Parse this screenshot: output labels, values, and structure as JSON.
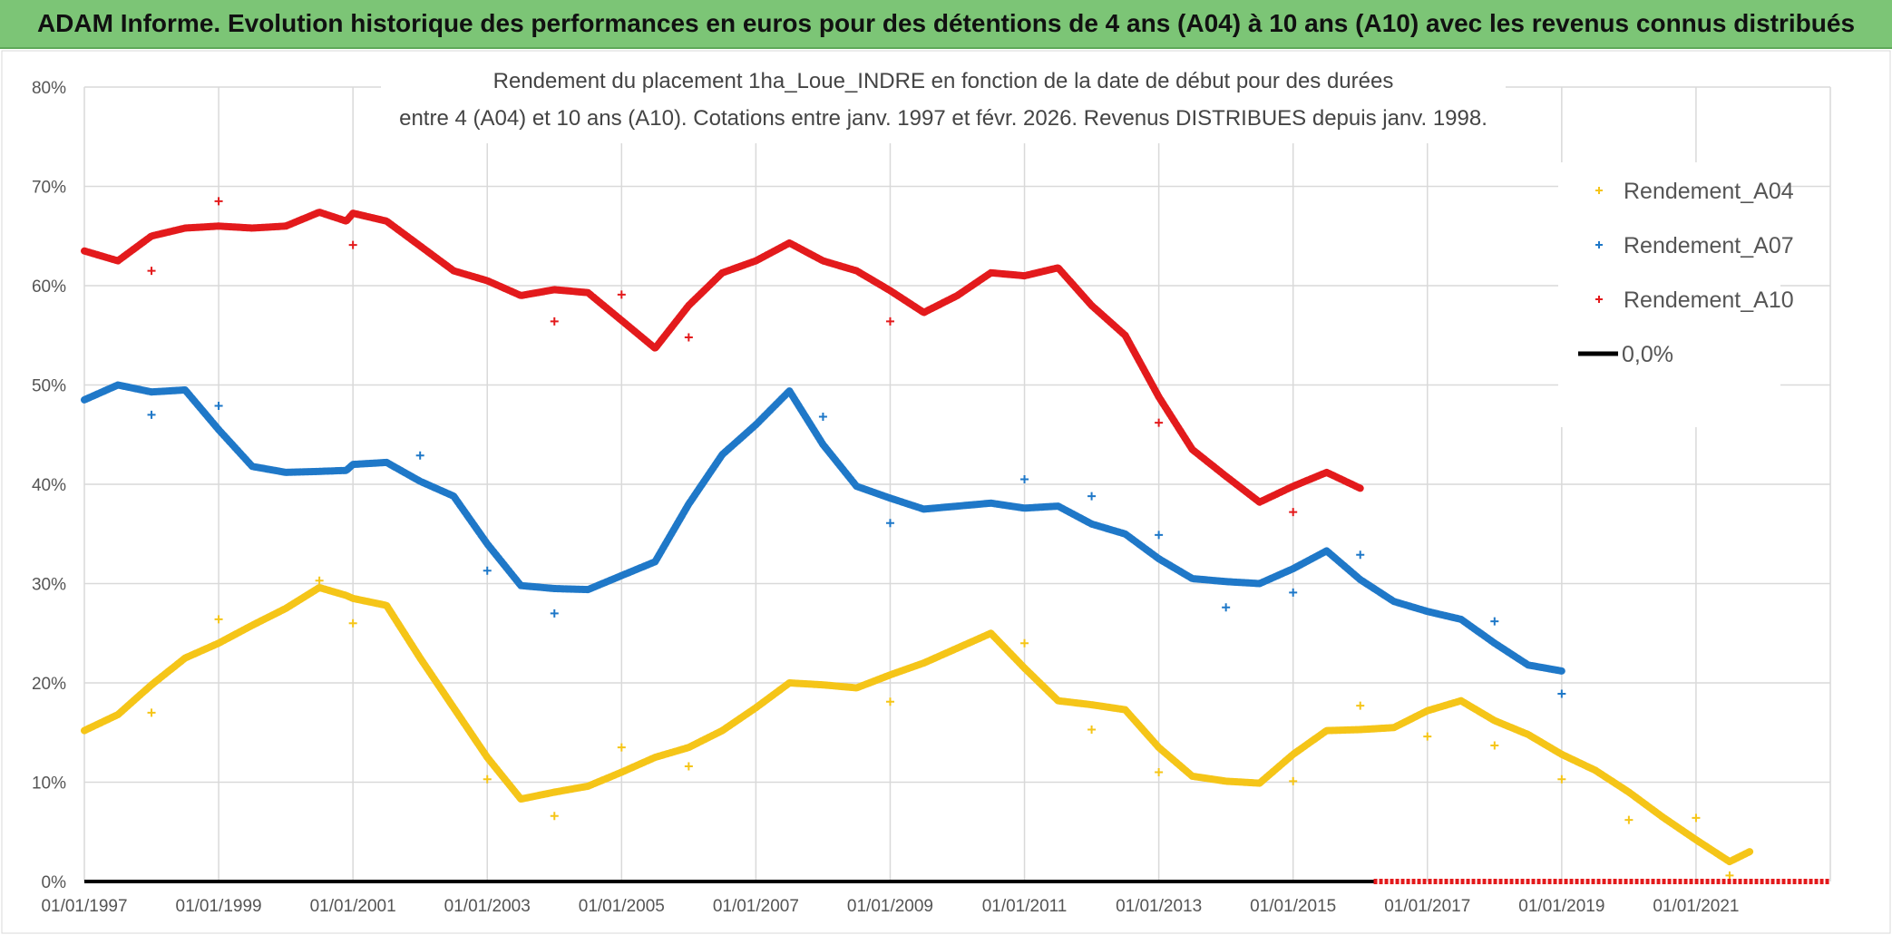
{
  "header": {
    "banner": "ADAM Informe. Evolution historique des performances en euros pour des détentions de 4 ans (A04) à 10 ans (A10) avec les revenus connus distribués"
  },
  "chart_data": {
    "type": "line",
    "title_line1": "Rendement du placement 1ha_Loue_INDRE en fonction de la date de début pour des durées",
    "title_line2": "entre 4 (A04) et 10 ans (A10). Cotations entre janv. 1997 et févr. 2026. Revenus DISTRIBUES depuis janv. 1998.",
    "xlabel": "",
    "ylabel": "",
    "xlim": [
      1997.0,
      2023.0
    ],
    "ylim": [
      0,
      80
    ],
    "grid": true,
    "legend_position": "top-right",
    "x_ticks": [
      1997,
      1999,
      2001,
      2003,
      2005,
      2007,
      2009,
      2011,
      2013,
      2015,
      2017,
      2019,
      2021
    ],
    "x_tick_labels": [
      "01/01/1997",
      "01/01/1999",
      "01/01/2001",
      "01/01/2003",
      "01/01/2005",
      "01/01/2007",
      "01/01/2009",
      "01/01/2011",
      "01/01/2013",
      "01/01/2015",
      "01/01/2017",
      "01/01/2019",
      "01/01/2021"
    ],
    "y_ticks": [
      0,
      10,
      20,
      30,
      40,
      50,
      60,
      70,
      80
    ],
    "y_tick_labels": [
      "0%",
      "10%",
      "20%",
      "30%",
      "40%",
      "50%",
      "60%",
      "70%",
      "80%"
    ],
    "series": [
      {
        "name": "Rendement_A04",
        "color": "#f5c518",
        "x": [
          1997.0,
          1997.5,
          1998.0,
          1998.5,
          1999.0,
          1999.5,
          2000.0,
          2000.5,
          2000.9,
          2001.0,
          2001.5,
          2002.0,
          2002.5,
          2003.0,
          2003.5,
          2004.0,
          2004.5,
          2005.0,
          2005.5,
          2006.0,
          2006.5,
          2007.0,
          2007.5,
          2008.0,
          2008.5,
          2009.0,
          2009.5,
          2010.0,
          2010.5,
          2011.0,
          2011.5,
          2012.0,
          2012.5,
          2013.0,
          2013.5,
          2014.0,
          2014.5,
          2015.0,
          2015.5,
          2016.0,
          2016.5,
          2017.0,
          2017.5,
          2018.0,
          2018.5,
          2019.0,
          2019.5,
          2020.0,
          2020.5,
          2021.0,
          2021.5,
          2021.8
        ],
        "y": [
          15.2,
          16.8,
          19.8,
          22.5,
          24.0,
          25.8,
          27.5,
          29.6,
          28.8,
          28.5,
          27.8,
          22.5,
          17.5,
          12.5,
          8.3,
          9.0,
          9.6,
          11.0,
          12.5,
          13.5,
          15.2,
          17.5,
          20.0,
          19.8,
          19.5,
          20.8,
          22.0,
          23.5,
          25.0,
          21.5,
          18.2,
          17.8,
          17.3,
          13.5,
          10.6,
          10.1,
          9.9,
          12.8,
          15.2,
          15.3,
          15.5,
          17.2,
          18.2,
          16.2,
          14.8,
          12.8,
          11.2,
          9.0,
          6.5,
          4.2,
          2.0,
          3.0
        ],
        "outliers_x": [
          1998.0,
          1999.0,
          2000.5,
          2001.0,
          2003.0,
          2004.0,
          2005.0,
          2006.0,
          2009.0,
          2011.0,
          2012.0,
          2013.0,
          2015.0,
          2016.0,
          2017.0,
          2018.0,
          2019.0,
          2020.0,
          2021.0,
          2021.5
        ],
        "outliers_y": [
          17.0,
          26.4,
          30.3,
          26.0,
          10.3,
          6.6,
          13.5,
          11.6,
          18.1,
          24.0,
          15.3,
          11.0,
          10.1,
          17.7,
          14.6,
          13.7,
          10.3,
          6.2,
          6.4,
          0.6
        ]
      },
      {
        "name": "Rendement_A07",
        "color": "#1f78c8",
        "x": [
          1997.0,
          1997.5,
          1998.0,
          1998.5,
          1999.0,
          1999.5,
          2000.0,
          2000.5,
          2000.9,
          2001.0,
          2001.5,
          2002.0,
          2002.5,
          2003.0,
          2003.5,
          2004.0,
          2004.5,
          2005.0,
          2005.5,
          2006.0,
          2006.5,
          2007.0,
          2007.5,
          2008.0,
          2008.5,
          2009.0,
          2009.5,
          2010.0,
          2010.5,
          2011.0,
          2011.5,
          2012.0,
          2012.5,
          2013.0,
          2013.5,
          2014.0,
          2014.5,
          2015.0,
          2015.5,
          2016.0,
          2016.5,
          2017.0,
          2017.5,
          2018.0,
          2018.5,
          2019.0
        ],
        "y": [
          48.5,
          50.0,
          49.3,
          49.5,
          45.5,
          41.8,
          41.2,
          41.3,
          41.4,
          42.0,
          42.2,
          40.3,
          38.8,
          34.0,
          29.8,
          29.5,
          29.4,
          30.8,
          32.2,
          38.0,
          43.0,
          46.0,
          49.4,
          44.0,
          39.8,
          38.6,
          37.5,
          37.8,
          38.1,
          37.6,
          37.8,
          36.0,
          35.0,
          32.5,
          30.5,
          30.2,
          30.0,
          31.5,
          33.3,
          30.4,
          28.2,
          27.2,
          26.4,
          24.0,
          21.8,
          21.2
        ],
        "outliers_x": [
          1998.0,
          1999.0,
          2002.0,
          2003.0,
          2004.0,
          2008.0,
          2009.0,
          2011.0,
          2012.0,
          2013.0,
          2014.0,
          2015.0,
          2016.0,
          2018.0,
          2019.0
        ],
        "outliers_y": [
          47.0,
          47.9,
          42.9,
          31.3,
          27.0,
          46.8,
          36.1,
          40.5,
          38.8,
          34.9,
          27.6,
          29.1,
          32.9,
          26.2,
          18.9
        ]
      },
      {
        "name": "Rendement_A10",
        "color": "#e31a1c",
        "x": [
          1997.0,
          1997.5,
          1998.0,
          1998.5,
          1999.0,
          1999.5,
          2000.0,
          2000.5,
          2000.9,
          2001.0,
          2001.5,
          2002.0,
          2002.5,
          2003.0,
          2003.5,
          2004.0,
          2004.5,
          2005.0,
          2005.5,
          2006.0,
          2006.5,
          2007.0,
          2007.5,
          2008.0,
          2008.5,
          2009.0,
          2009.5,
          2010.0,
          2010.5,
          2011.0,
          2011.5,
          2012.0,
          2012.5,
          2013.0,
          2013.5,
          2014.0,
          2014.5,
          2015.0,
          2015.5,
          2016.0
        ],
        "y": [
          63.5,
          62.5,
          65.0,
          65.8,
          66.0,
          65.8,
          66.0,
          67.4,
          66.5,
          67.3,
          66.5,
          64.0,
          61.5,
          60.5,
          59.0,
          59.6,
          59.3,
          56.5,
          53.7,
          58.0,
          61.3,
          62.5,
          64.3,
          62.5,
          61.5,
          59.5,
          57.3,
          59.0,
          61.3,
          61.0,
          61.8,
          58.0,
          55.0,
          48.8,
          43.5,
          40.8,
          38.2,
          39.8,
          41.2,
          39.6
        ],
        "outliers_x": [
          1998.0,
          1999.0,
          2001.0,
          2004.0,
          2005.0,
          2006.0,
          2009.0,
          2013.0,
          2015.0
        ],
        "outliers_y": [
          61.5,
          68.5,
          64.1,
          56.4,
          59.1,
          54.8,
          56.4,
          46.2,
          37.2
        ]
      }
    ],
    "zero_line": {
      "name": "0,0%",
      "color": "#000000",
      "value": 0
    },
    "zero_markers": {
      "color": "#e31a1c",
      "x_start": 2016.2,
      "x_end": 2023.0
    }
  }
}
